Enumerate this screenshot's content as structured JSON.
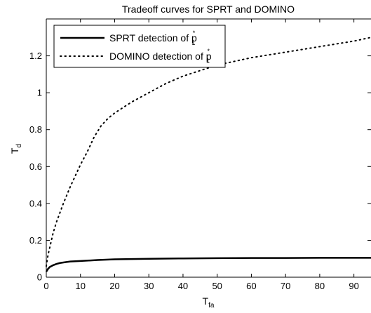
{
  "chart_data": {
    "type": "line",
    "title": "Tradeoff curves for SPRT and DOMINO",
    "xlabel": {
      "main": "T",
      "sub": "fa"
    },
    "ylabel": {
      "main": "T",
      "sub": "d"
    },
    "xlim": [
      0,
      95
    ],
    "ylim": [
      0,
      1.4
    ],
    "xticks": [
      0,
      10,
      20,
      30,
      40,
      50,
      60,
      70,
      80,
      90
    ],
    "xtick_labels": [
      "0",
      "10",
      "20",
      "30",
      "40",
      "50",
      "60",
      "70",
      "80",
      "90"
    ],
    "yticks": [
      0,
      0.2,
      0.4,
      0.6,
      0.8,
      1.0,
      1.2
    ],
    "ytick_labels": [
      "0",
      "0.2",
      "0.4",
      "0.6",
      "0.8",
      "1",
      "1.2"
    ],
    "grid": false,
    "legend_position": "top-left",
    "series": [
      {
        "legend": {
          "prefix": "SPRT detection of p",
          "sup": "*",
          "sub": "1"
        },
        "style": "solid",
        "color": "#000000",
        "x": [
          0,
          0.5,
          1,
          2,
          3,
          4,
          5,
          7,
          10,
          15,
          20,
          30,
          40,
          50,
          60,
          70,
          80,
          90,
          95
        ],
        "y": [
          0.03,
          0.045,
          0.055,
          0.065,
          0.072,
          0.077,
          0.08,
          0.085,
          0.088,
          0.093,
          0.097,
          0.1,
          0.102,
          0.103,
          0.104,
          0.104,
          0.105,
          0.105,
          0.105
        ]
      },
      {
        "legend": {
          "prefix": "DOMINO detection of p",
          "sup": "*",
          "sub": "1"
        },
        "style": "dotted",
        "color": "#000000",
        "x": [
          0,
          0.5,
          1,
          2,
          3,
          5,
          7,
          9,
          10,
          12,
          14,
          16,
          18,
          20,
          25,
          30,
          35,
          40,
          45,
          50,
          60,
          70,
          80,
          90,
          95
        ],
        "y": [
          0.06,
          0.12,
          0.16,
          0.24,
          0.3,
          0.4,
          0.49,
          0.57,
          0.61,
          0.68,
          0.76,
          0.82,
          0.86,
          0.89,
          0.95,
          1.0,
          1.05,
          1.09,
          1.12,
          1.15,
          1.19,
          1.22,
          1.25,
          1.28,
          1.3
        ]
      }
    ]
  }
}
